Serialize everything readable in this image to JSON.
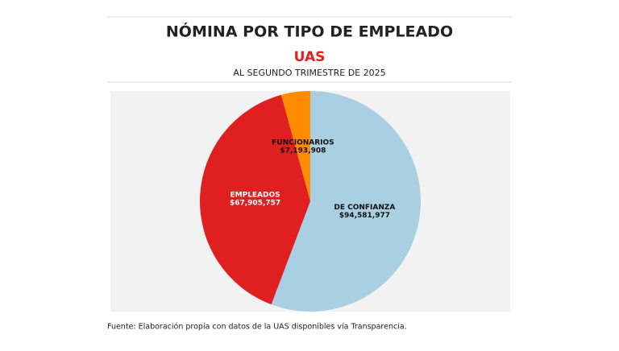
{
  "chart_data": {
    "type": "pie",
    "title": "NÓMINA POR TIPO DE EMPLEADO",
    "subtitle": "UAS",
    "caption": "AL SEGUNDO TRIMESTRE DE 2025",
    "source": "Fuente: Elaboración propia con datos de la UAS disponibles vía Transparencia.",
    "categories": [
      "DE CONFIANZA",
      "EMPLEADOS",
      "FUNCIONARIOS"
    ],
    "values": [
      94581977,
      67905757,
      7193908
    ],
    "value_labels": [
      "$94,581,977",
      "$67,905,757",
      "$7,193,908"
    ],
    "colors": [
      "#a9cfe3",
      "#e02020",
      "#ff8c00"
    ]
  }
}
